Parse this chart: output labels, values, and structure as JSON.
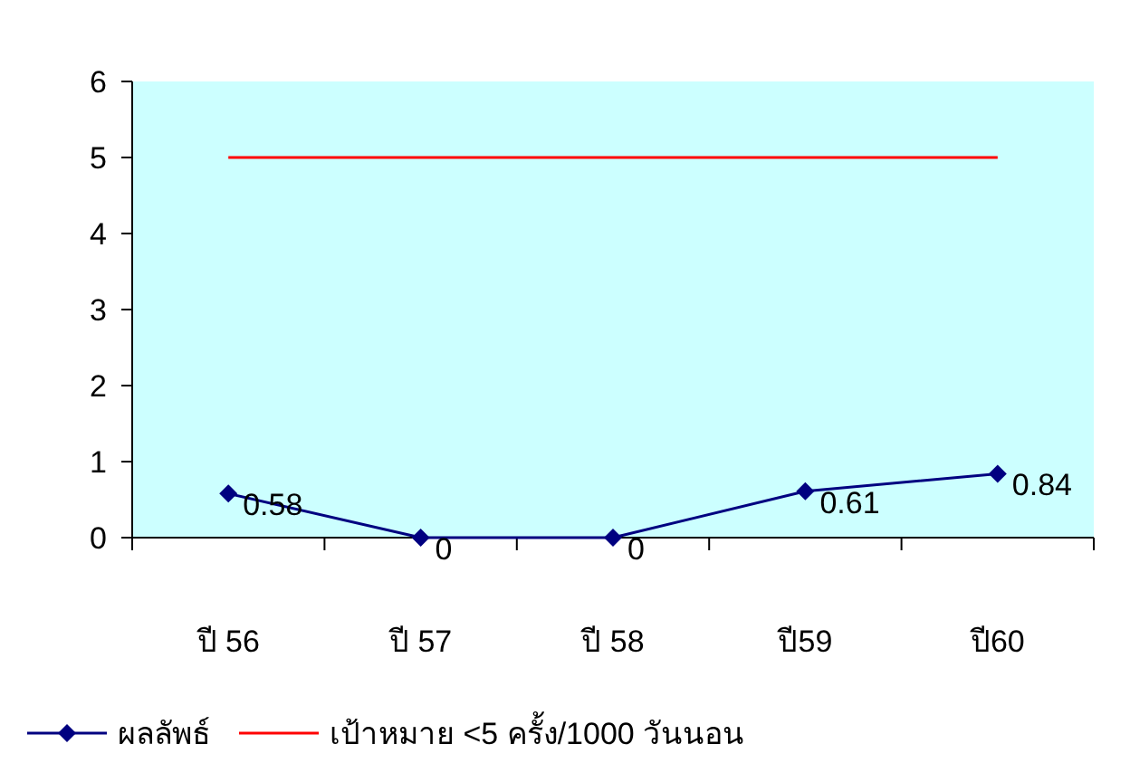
{
  "chart_data": {
    "type": "line",
    "categories": [
      "ปี 56",
      "ปี 57",
      "ปี 58",
      "ปี59",
      "ปี60"
    ],
    "series": [
      {
        "name": "ผลลัพธ์",
        "color": "#000080",
        "values": [
          0.58,
          0,
          0,
          0.61,
          0.84
        ],
        "marker": "diamond",
        "value_labels": [
          "0.58",
          "0",
          "0",
          "0.61",
          "0.84"
        ]
      },
      {
        "name": "เป้าหมาย <5 ครั้ง/1000 วันนอน",
        "color": "#ff0000",
        "values": [
          5,
          5,
          5,
          5,
          5
        ],
        "marker": "none"
      }
    ],
    "ylim": [
      0,
      6
    ],
    "yticks": [
      0,
      1,
      2,
      3,
      4,
      5,
      6
    ],
    "legend": "bottom",
    "grid": false
  }
}
